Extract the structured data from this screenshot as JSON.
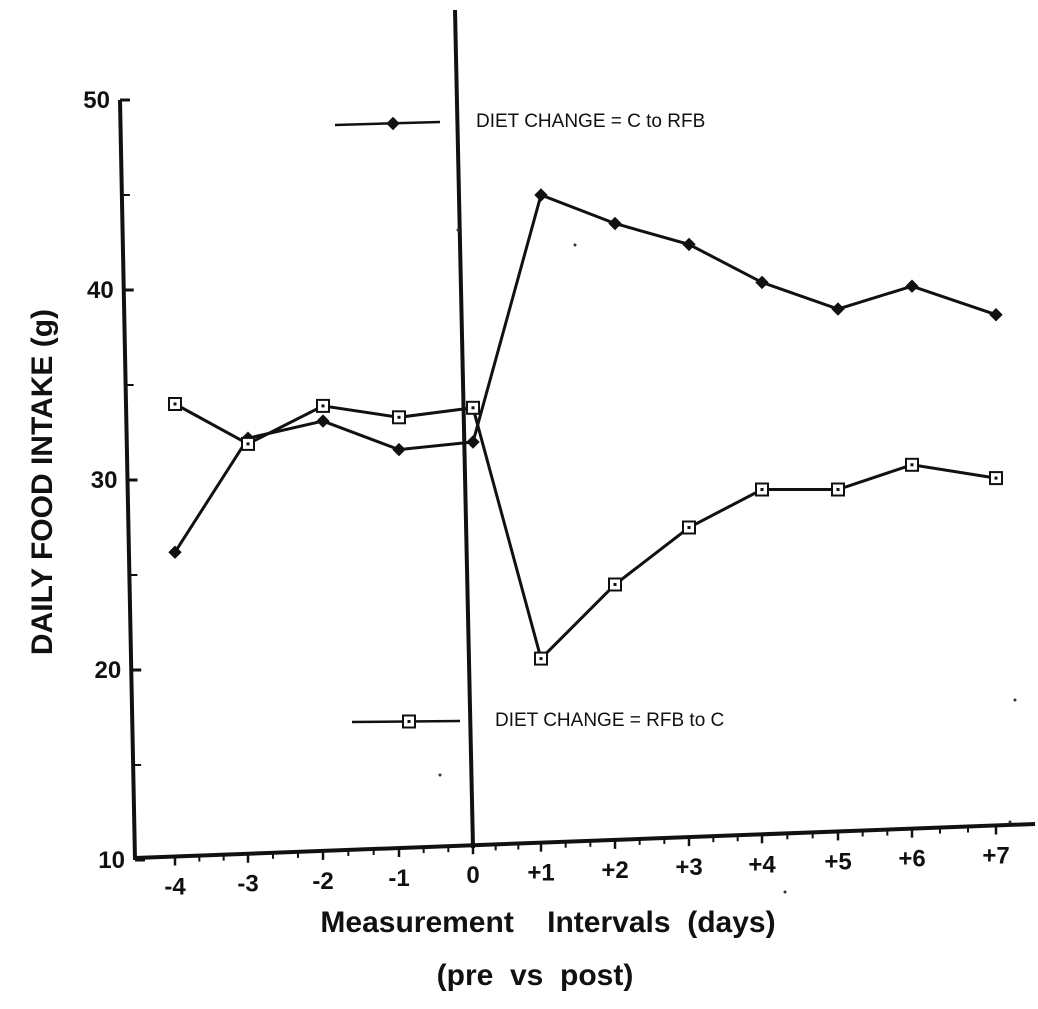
{
  "chart_data": {
    "type": "line",
    "ylabel": "DAILY FOOD INTAKE (g)",
    "xlabel_line1": "Measurement    Intervals  (days)",
    "xlabel_line2": "(pre  vs  post)",
    "ylim": [
      10,
      50
    ],
    "y_ticks": [
      10,
      20,
      30,
      40,
      50
    ],
    "x": [
      -4,
      -3,
      -2,
      -1,
      0,
      1,
      2,
      3,
      4,
      5,
      6,
      7
    ],
    "x_tick_labels": [
      "-4",
      "-3",
      "-2",
      "-1",
      "0",
      "+1",
      "+2",
      "+3",
      "+4",
      "+5",
      "+6",
      "+7"
    ],
    "grid": false,
    "legend_placement": "inside",
    "series": [
      {
        "name": "DIET CHANGE = C to RFB",
        "marker": "filled-diamond",
        "color": "#111111",
        "values": [
          26.2,
          32.2,
          33.1,
          31.6,
          32.0,
          45.0,
          43.5,
          42.4,
          40.4,
          39.0,
          40.2,
          38.7
        ]
      },
      {
        "name": "DIET CHANGE = RFB to C",
        "marker": "open-square",
        "color": "#111111",
        "values": [
          34.0,
          31.9,
          33.9,
          33.3,
          33.8,
          20.6,
          24.5,
          27.5,
          29.5,
          29.5,
          30.8,
          30.1
        ]
      }
    ]
  }
}
